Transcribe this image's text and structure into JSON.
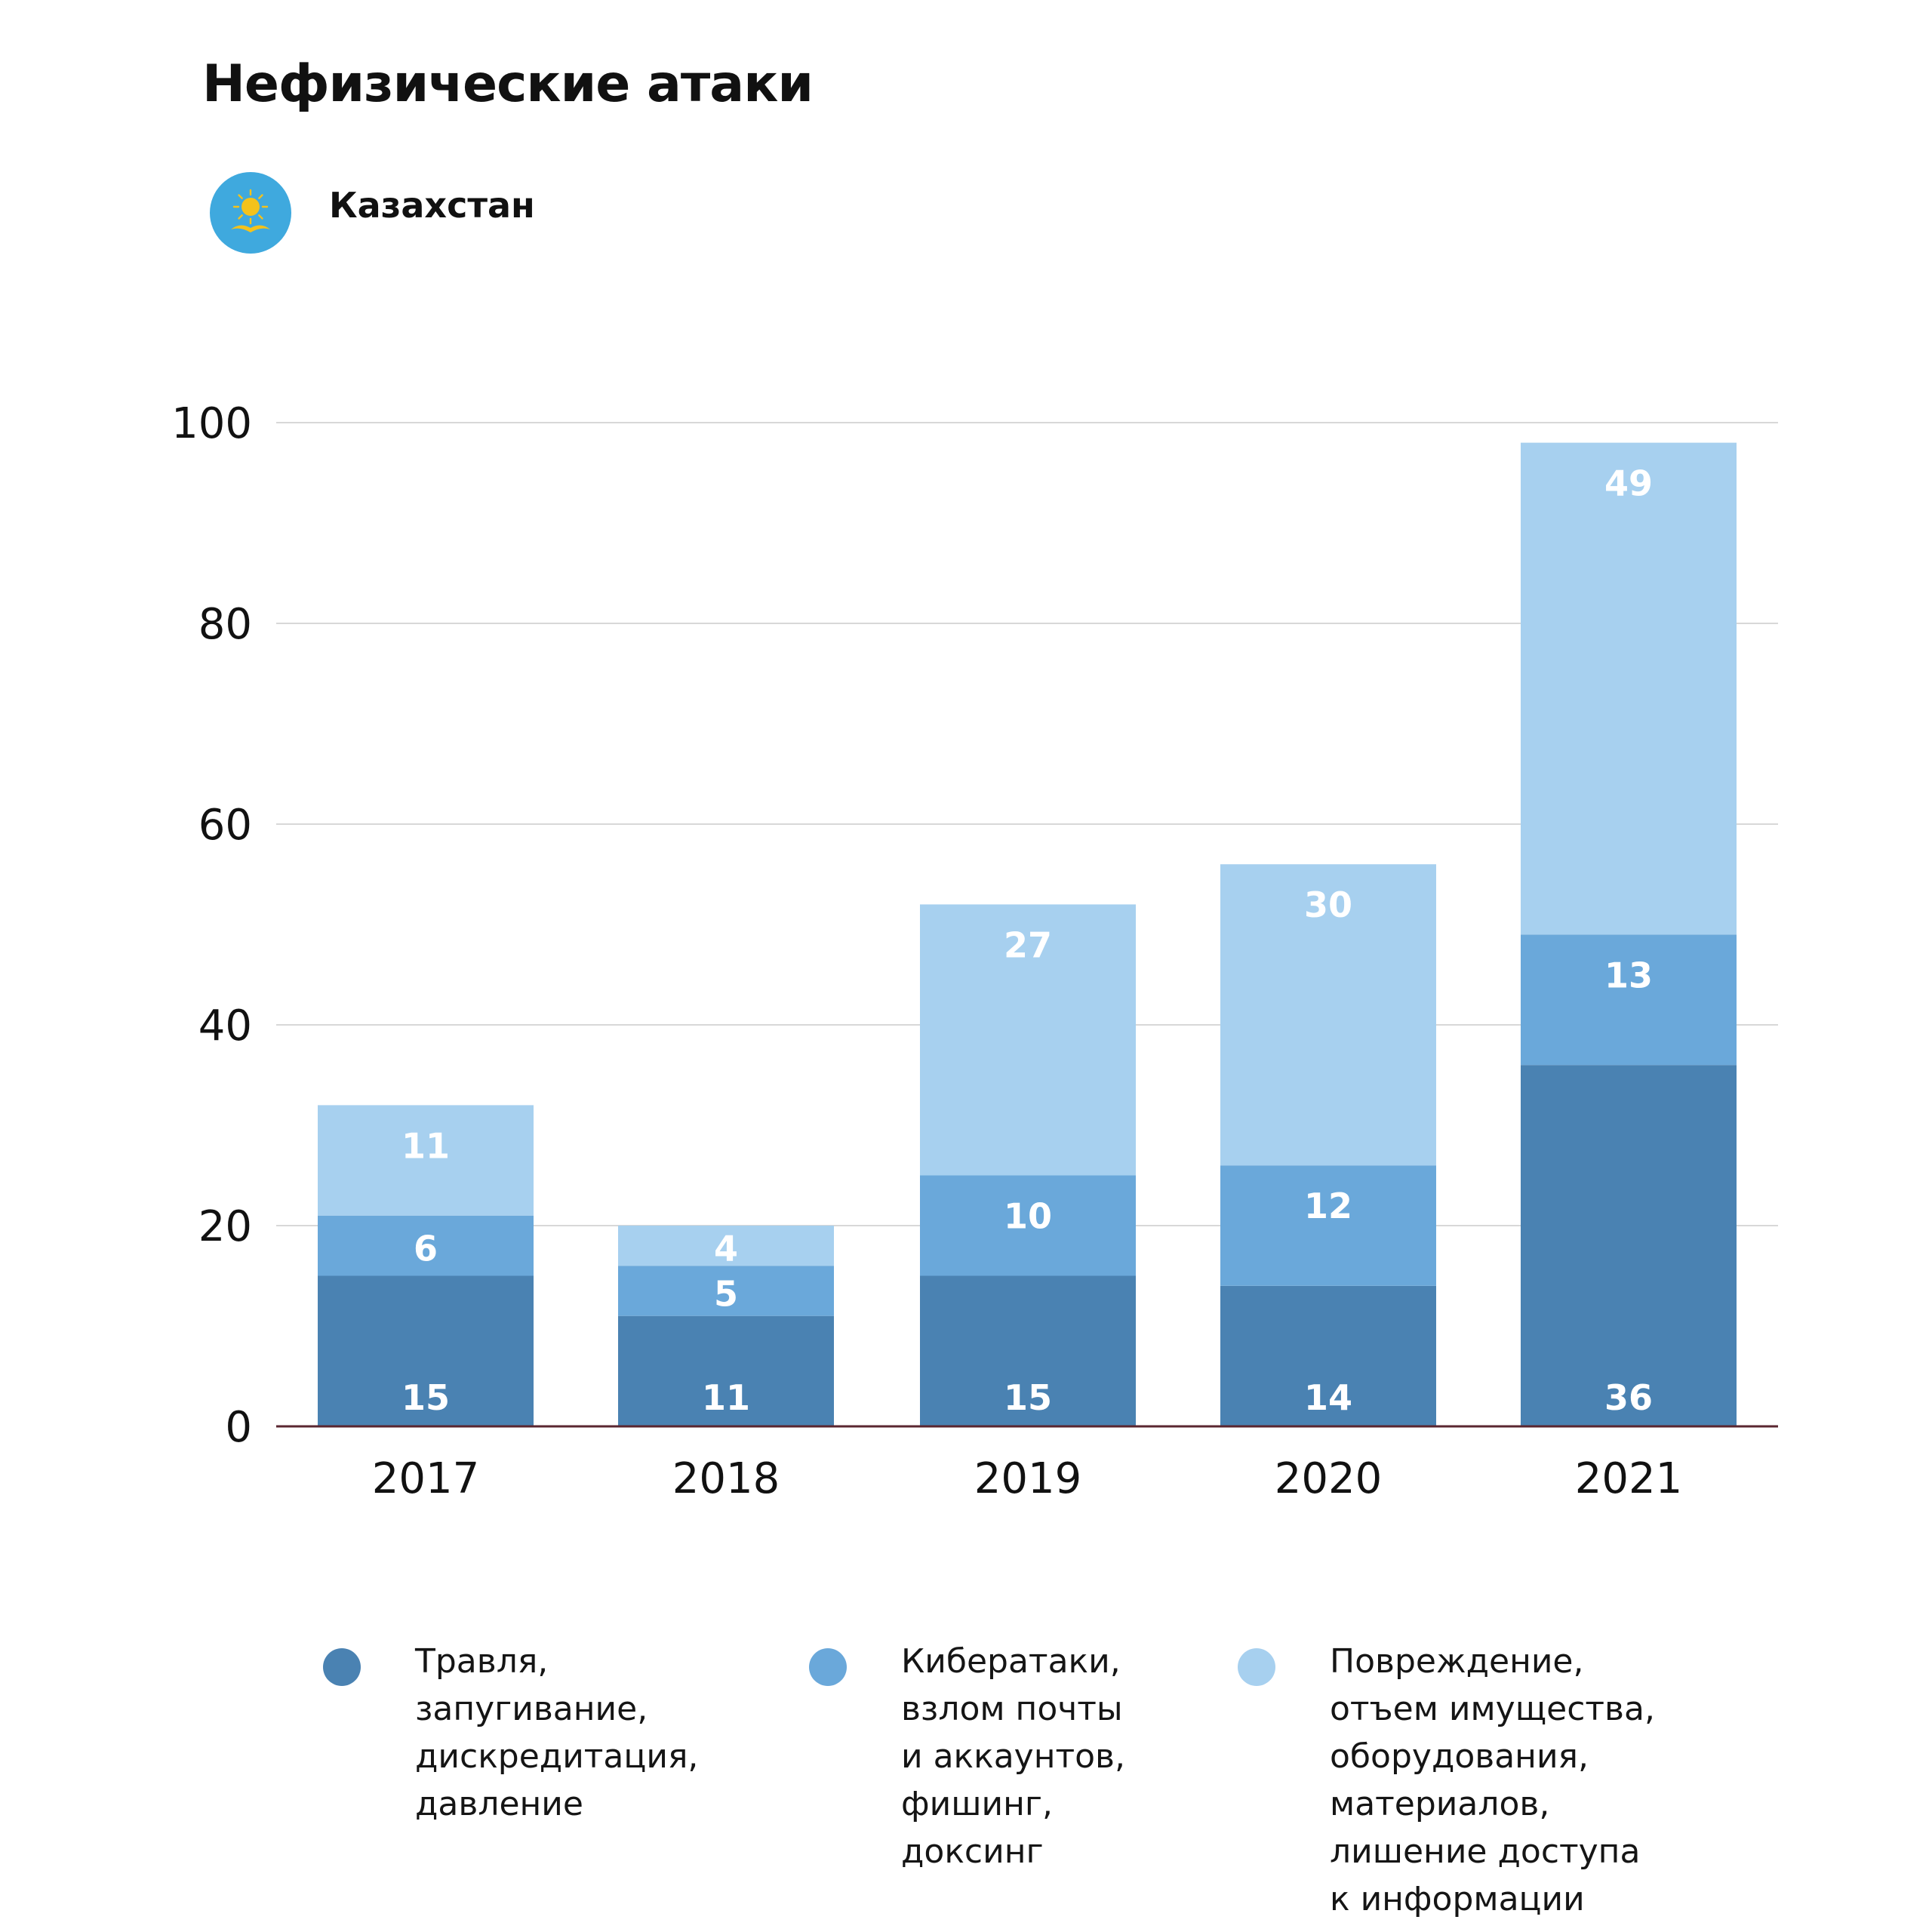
{
  "header": {
    "title": "Нефизические атаки",
    "country": "Казахстан",
    "flag_icon": "kazakhstan-flag-icon"
  },
  "colors": {
    "series1": "#4a82b2",
    "series2": "#6aa8da",
    "series3": "#a7d0ef",
    "grid": "#d8d8d8",
    "axis": "#5a2630",
    "flag_bg": "#3fa9de",
    "flag_sun": "#f4c21b"
  },
  "chart_data": {
    "type": "bar",
    "stacked": true,
    "title": "Нефизические атаки",
    "xlabel": "",
    "ylabel": "",
    "categories": [
      "2017",
      "2018",
      "2019",
      "2020",
      "2021"
    ],
    "ylim": [
      0,
      100
    ],
    "yticks": [
      "0",
      "20",
      "40",
      "60",
      "80",
      "100"
    ],
    "grid": true,
    "legend_position": "bottom",
    "series": [
      {
        "name": "Травля,\nзапугивание,\nдискредитация,\nдавление",
        "values": [
          15,
          11,
          15,
          14,
          36
        ]
      },
      {
        "name": "Кибератаки,\nвзлом почты\nи аккаунтов,\nфишинг,\nдоксинг",
        "values": [
          6,
          5,
          10,
          12,
          13
        ]
      },
      {
        "name": "Повреждение,\nотъем имущества,\nоборудования,\nматериалов,\nлишение доступа\nк информации",
        "values": [
          11,
          4,
          27,
          30,
          49
        ]
      }
    ]
  }
}
